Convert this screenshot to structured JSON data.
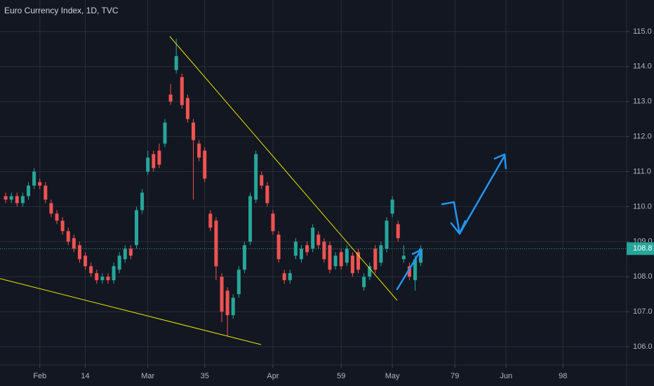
{
  "chart_data": {
    "type": "candlestick",
    "title": "Euro Currency Index, 1D, TVC",
    "up_color": "#26a69a",
    "down_color": "#ef5350",
    "open": [
      110.3,
      110.2,
      110.3,
      110.1,
      110.3,
      110.6,
      110.7,
      110.6,
      110.1,
      109.8,
      109.6,
      109.3,
      109.1,
      108.9,
      108.6,
      108.3,
      108.1,
      107.9,
      108.0,
      107.9,
      108.2,
      108.5,
      108.8,
      108.9,
      109.9,
      111.0,
      111.5,
      111.6,
      111.8,
      113.2,
      113.9,
      113.7,
      113.1,
      112.4,
      111.8,
      111.6,
      109.8,
      109.6,
      108.0,
      107.6,
      106.9,
      107.5,
      108.2,
      109.0,
      110.2,
      110.9,
      110.6,
      109.8,
      109.2,
      108.1,
      107.9,
      108.6,
      108.5,
      108.9,
      108.8,
      109.2,
      109.0,
      108.9,
      108.3,
      108.7,
      108.4,
      108.6,
      108.7,
      107.7,
      108.0,
      108.8,
      108.4,
      108.8,
      109.8,
      109.5,
      108.5,
      108.3,
      107.9,
      108.4
    ],
    "high": [
      110.4,
      110.4,
      110.4,
      110.4,
      110.7,
      111.1,
      110.8,
      110.7,
      110.2,
      109.9,
      109.7,
      109.4,
      109.2,
      109.0,
      108.7,
      108.4,
      108.2,
      108.1,
      108.1,
      108.4,
      108.7,
      108.9,
      108.9,
      110.0,
      110.5,
      111.6,
      111.6,
      111.8,
      112.5,
      113.5,
      114.8,
      113.8,
      113.2,
      112.5,
      111.9,
      111.7,
      109.9,
      109.7,
      108.1,
      107.7,
      107.5,
      108.3,
      109.0,
      110.4,
      111.6,
      111.0,
      110.7,
      109.9,
      109.3,
      108.2,
      108.2,
      109.1,
      108.9,
      109.0,
      109.5,
      109.3,
      109.1,
      109.0,
      108.7,
      108.8,
      108.9,
      108.7,
      108.8,
      108.1,
      108.4,
      108.9,
      109.0,
      109.7,
      110.3,
      109.6,
      108.9,
      108.4,
      108.6,
      108.9
    ],
    "low": [
      110.1,
      110.1,
      110.0,
      110.0,
      110.2,
      110.5,
      110.5,
      110.1,
      109.7,
      109.5,
      109.2,
      108.9,
      108.7,
      108.4,
      108.2,
      108.0,
      107.8,
      107.8,
      107.8,
      107.8,
      108.1,
      108.4,
      108.5,
      108.8,
      109.8,
      110.9,
      111.0,
      111.1,
      111.7,
      112.9,
      113.8,
      112.8,
      112.4,
      110.2,
      111.3,
      110.7,
      109.3,
      107.9,
      106.7,
      106.3,
      106.8,
      107.4,
      108.1,
      108.9,
      110.1,
      110.5,
      110.0,
      109.2,
      108.4,
      107.8,
      107.8,
      108.5,
      108.4,
      108.6,
      108.7,
      108.8,
      108.4,
      108.1,
      108.2,
      108.2,
      108.3,
      108.0,
      108.1,
      107.6,
      107.9,
      108.1,
      108.3,
      108.7,
      109.7,
      109.0,
      108.4,
      107.9,
      107.6,
      108.3
    ],
    "close": [
      110.2,
      110.3,
      110.1,
      110.3,
      110.6,
      111.0,
      110.6,
      110.2,
      109.8,
      109.6,
      109.3,
      109.0,
      108.8,
      108.5,
      108.3,
      108.1,
      107.9,
      108.0,
      107.9,
      108.3,
      108.6,
      108.8,
      108.6,
      109.9,
      110.4,
      111.4,
      111.1,
      111.2,
      112.4,
      113.0,
      114.3,
      112.9,
      112.5,
      111.9,
      111.4,
      110.8,
      109.4,
      108.3,
      107.0,
      106.9,
      107.4,
      108.2,
      108.9,
      110.3,
      111.5,
      110.6,
      110.1,
      109.3,
      108.5,
      107.9,
      108.1,
      109.0,
      108.8,
      108.7,
      109.4,
      108.9,
      108.5,
      108.2,
      108.6,
      108.3,
      108.8,
      108.1,
      108.2,
      108.0,
      108.3,
      108.2,
      108.9,
      109.6,
      110.2,
      109.1,
      108.6,
      108.0,
      108.5,
      108.8
    ],
    "xlim": [
      -1,
      109.2
    ],
    "xticks": [
      {
        "value": 6,
        "label": "Feb"
      },
      14,
      {
        "value": 25,
        "label": "Mar"
      },
      35,
      {
        "value": 47,
        "label": "Apr"
      },
      59,
      {
        "value": 68,
        "label": "May"
      },
      79,
      {
        "value": 88,
        "label": "Jun"
      },
      98
    ],
    "ylim": [
      105.48,
      115.9
    ],
    "yticks": [
      {
        "value": 106,
        "label": "106.0"
      },
      {
        "value": 107,
        "label": "107.0"
      },
      {
        "value": 108,
        "label": "108.0"
      },
      {
        "value": 109,
        "label": "109.0"
      },
      {
        "value": 110,
        "label": "110.0"
      },
      {
        "value": 111,
        "label": "111.0"
      },
      {
        "value": 112,
        "label": "112.0"
      },
      {
        "value": 113,
        "label": "113.0"
      },
      {
        "value": 114,
        "label": "114.0"
      },
      {
        "value": 115,
        "label": "115.0"
      }
    ],
    "grid": true
  }
}
